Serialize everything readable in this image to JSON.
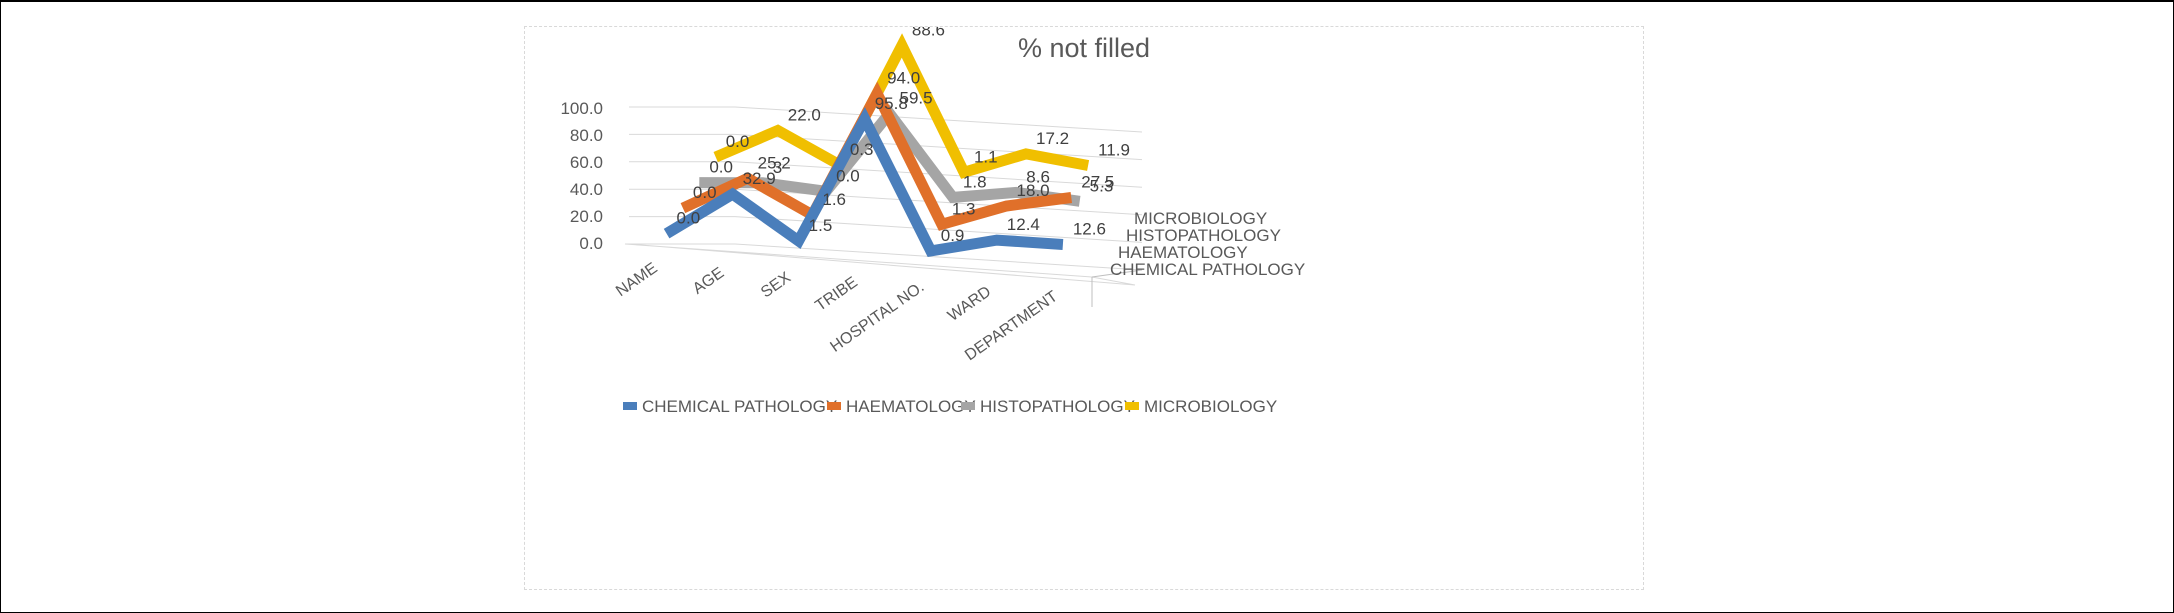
{
  "chart_data": {
    "type": "line",
    "title": "% not filled",
    "categories": [
      "NAME",
      "AGE",
      "SEX",
      "TRIBE",
      "HOSPITAL NO.",
      "WARD",
      "DEPARTMENT"
    ],
    "y_ticks": [
      "0.0",
      "20.0",
      "40.0",
      "60.0",
      "80.0",
      "100.0"
    ],
    "ylim": [
      0,
      100
    ],
    "legend_position": "bottom",
    "series": [
      {
        "name": "CHEMICAL PATHOLOGY",
        "color": "#4a7ebb",
        "values": [
          0.0,
          32.9,
          1.5,
          95.8,
          0.9,
          12.4,
          12.6
        ],
        "labels": [
          "0.0",
          "32.9",
          "1.5",
          "95.8",
          "0.9",
          "12.4",
          "12.6"
        ]
      },
      {
        "name": "HAEMATOLOGY",
        "color": "#e0702a",
        "values": [
          0.0,
          25.2,
          1.6,
          94.0,
          1.3,
          18.0,
          27.5
        ],
        "labels": [
          "0.0",
          "25.2",
          "1.6",
          "94.0",
          "1.3",
          "18.0",
          "27.5"
        ]
      },
      {
        "name": "HISTOPATHOLOGY",
        "color": "#a5a5a5",
        "values": [
          0.0,
          3.0,
          0.0,
          59.5,
          1.8,
          8.6,
          5.3
        ],
        "labels": [
          "0.0",
          "3",
          "0.0",
          "59.5",
          "1.8",
          "8.6",
          "5.3"
        ]
      },
      {
        "name": "MICROBIOLOGY",
        "color": "#f0bf00",
        "values": [
          0.0,
          22.0,
          0.3,
          88.6,
          1.1,
          17.2,
          11.9
        ],
        "labels": [
          "0.0",
          "22.0",
          "0.3",
          "88.6",
          "1.1",
          "17.2",
          "11.9"
        ]
      }
    ]
  }
}
